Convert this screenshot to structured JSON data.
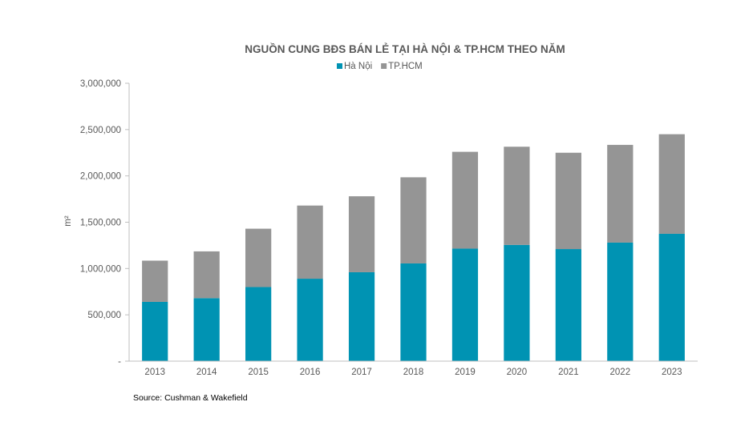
{
  "chart_data": {
    "type": "bar",
    "stacked": true,
    "title": "NGUỒN CUNG BĐS BÁN LẺ TẠI HÀ NỘI & TP.HCM THEO NĂM",
    "xlabel": "",
    "ylabel": "m²",
    "categories": [
      "2013",
      "2014",
      "2015",
      "2016",
      "2017",
      "2018",
      "2019",
      "2020",
      "2021",
      "2022",
      "2023"
    ],
    "series": [
      {
        "name": "Hà Nội",
        "color": "#0093b3",
        "values": [
          640000,
          680000,
          800000,
          890000,
          960000,
          1055000,
          1215000,
          1255000,
          1210000,
          1280000,
          1375000
        ]
      },
      {
        "name": "TP.HCM",
        "color": "#959595",
        "values": [
          445000,
          505000,
          630000,
          790000,
          820000,
          930000,
          1045000,
          1060000,
          1040000,
          1055000,
          1075000
        ]
      }
    ],
    "ylim": [
      0,
      3000000
    ],
    "yticks": [
      0,
      500000,
      1000000,
      1500000,
      2000000,
      2500000,
      3000000
    ],
    "ytick_labels": [
      "-",
      "500,000",
      "1,000,000",
      "1,500,000",
      "2,000,000",
      "2,500,000",
      "3,000,000"
    ],
    "grid": false,
    "legend": "top"
  },
  "source": "Source: Cushman & Wakefield"
}
